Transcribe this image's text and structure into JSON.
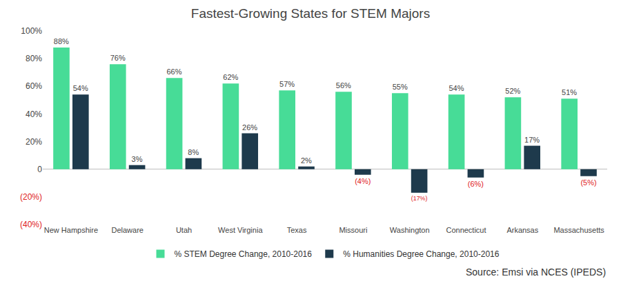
{
  "chart_data": {
    "type": "bar",
    "title": "Fastest-Growing States for STEM Majors",
    "categories": [
      "New Hampshire",
      "Delaware",
      "Utah",
      "West Virginia",
      "Texas",
      "Missouri",
      "Washington",
      "Connecticut",
      "Arkansas",
      "Massachusetts"
    ],
    "series": [
      {
        "name": "% STEM Degree Change, 2010-2016",
        "color": "#47dc97",
        "values": [
          88,
          76,
          66,
          62,
          57,
          56,
          55,
          54,
          52,
          51
        ],
        "value_labels": [
          "88%",
          "76%",
          "66%",
          "62%",
          "57%",
          "56%",
          "55%",
          "54%",
          "52%",
          "51%"
        ]
      },
      {
        "name": "% Humanities Degree Change, 2010-2016",
        "color": "#1e3a4c",
        "values": [
          54,
          3,
          8,
          26,
          2,
          -4,
          -17,
          -6,
          17,
          -5
        ],
        "value_labels": [
          "54%",
          "3%",
          "8%",
          "26%",
          "2%",
          "(4%)",
          "(17%)",
          "(6%)",
          "17%",
          "(5%)"
        ]
      }
    ],
    "ylim": [
      -40,
      100
    ],
    "yticks": [
      {
        "value": -40,
        "label": "(40%)"
      },
      {
        "value": -20,
        "label": "(20%)"
      },
      0,
      {
        "value": 20,
        "label": "20%"
      },
      {
        "value": 40,
        "label": "40%"
      },
      {
        "value": 60,
        "label": "60%"
      },
      {
        "value": 80,
        "label": "80%"
      },
      {
        "value": 100,
        "label": "100%"
      }
    ],
    "grid": false,
    "legend": "bottom",
    "data_labels": true,
    "annotations": [
      "Source: Emsi via NCES (IPEDS)"
    ]
  }
}
